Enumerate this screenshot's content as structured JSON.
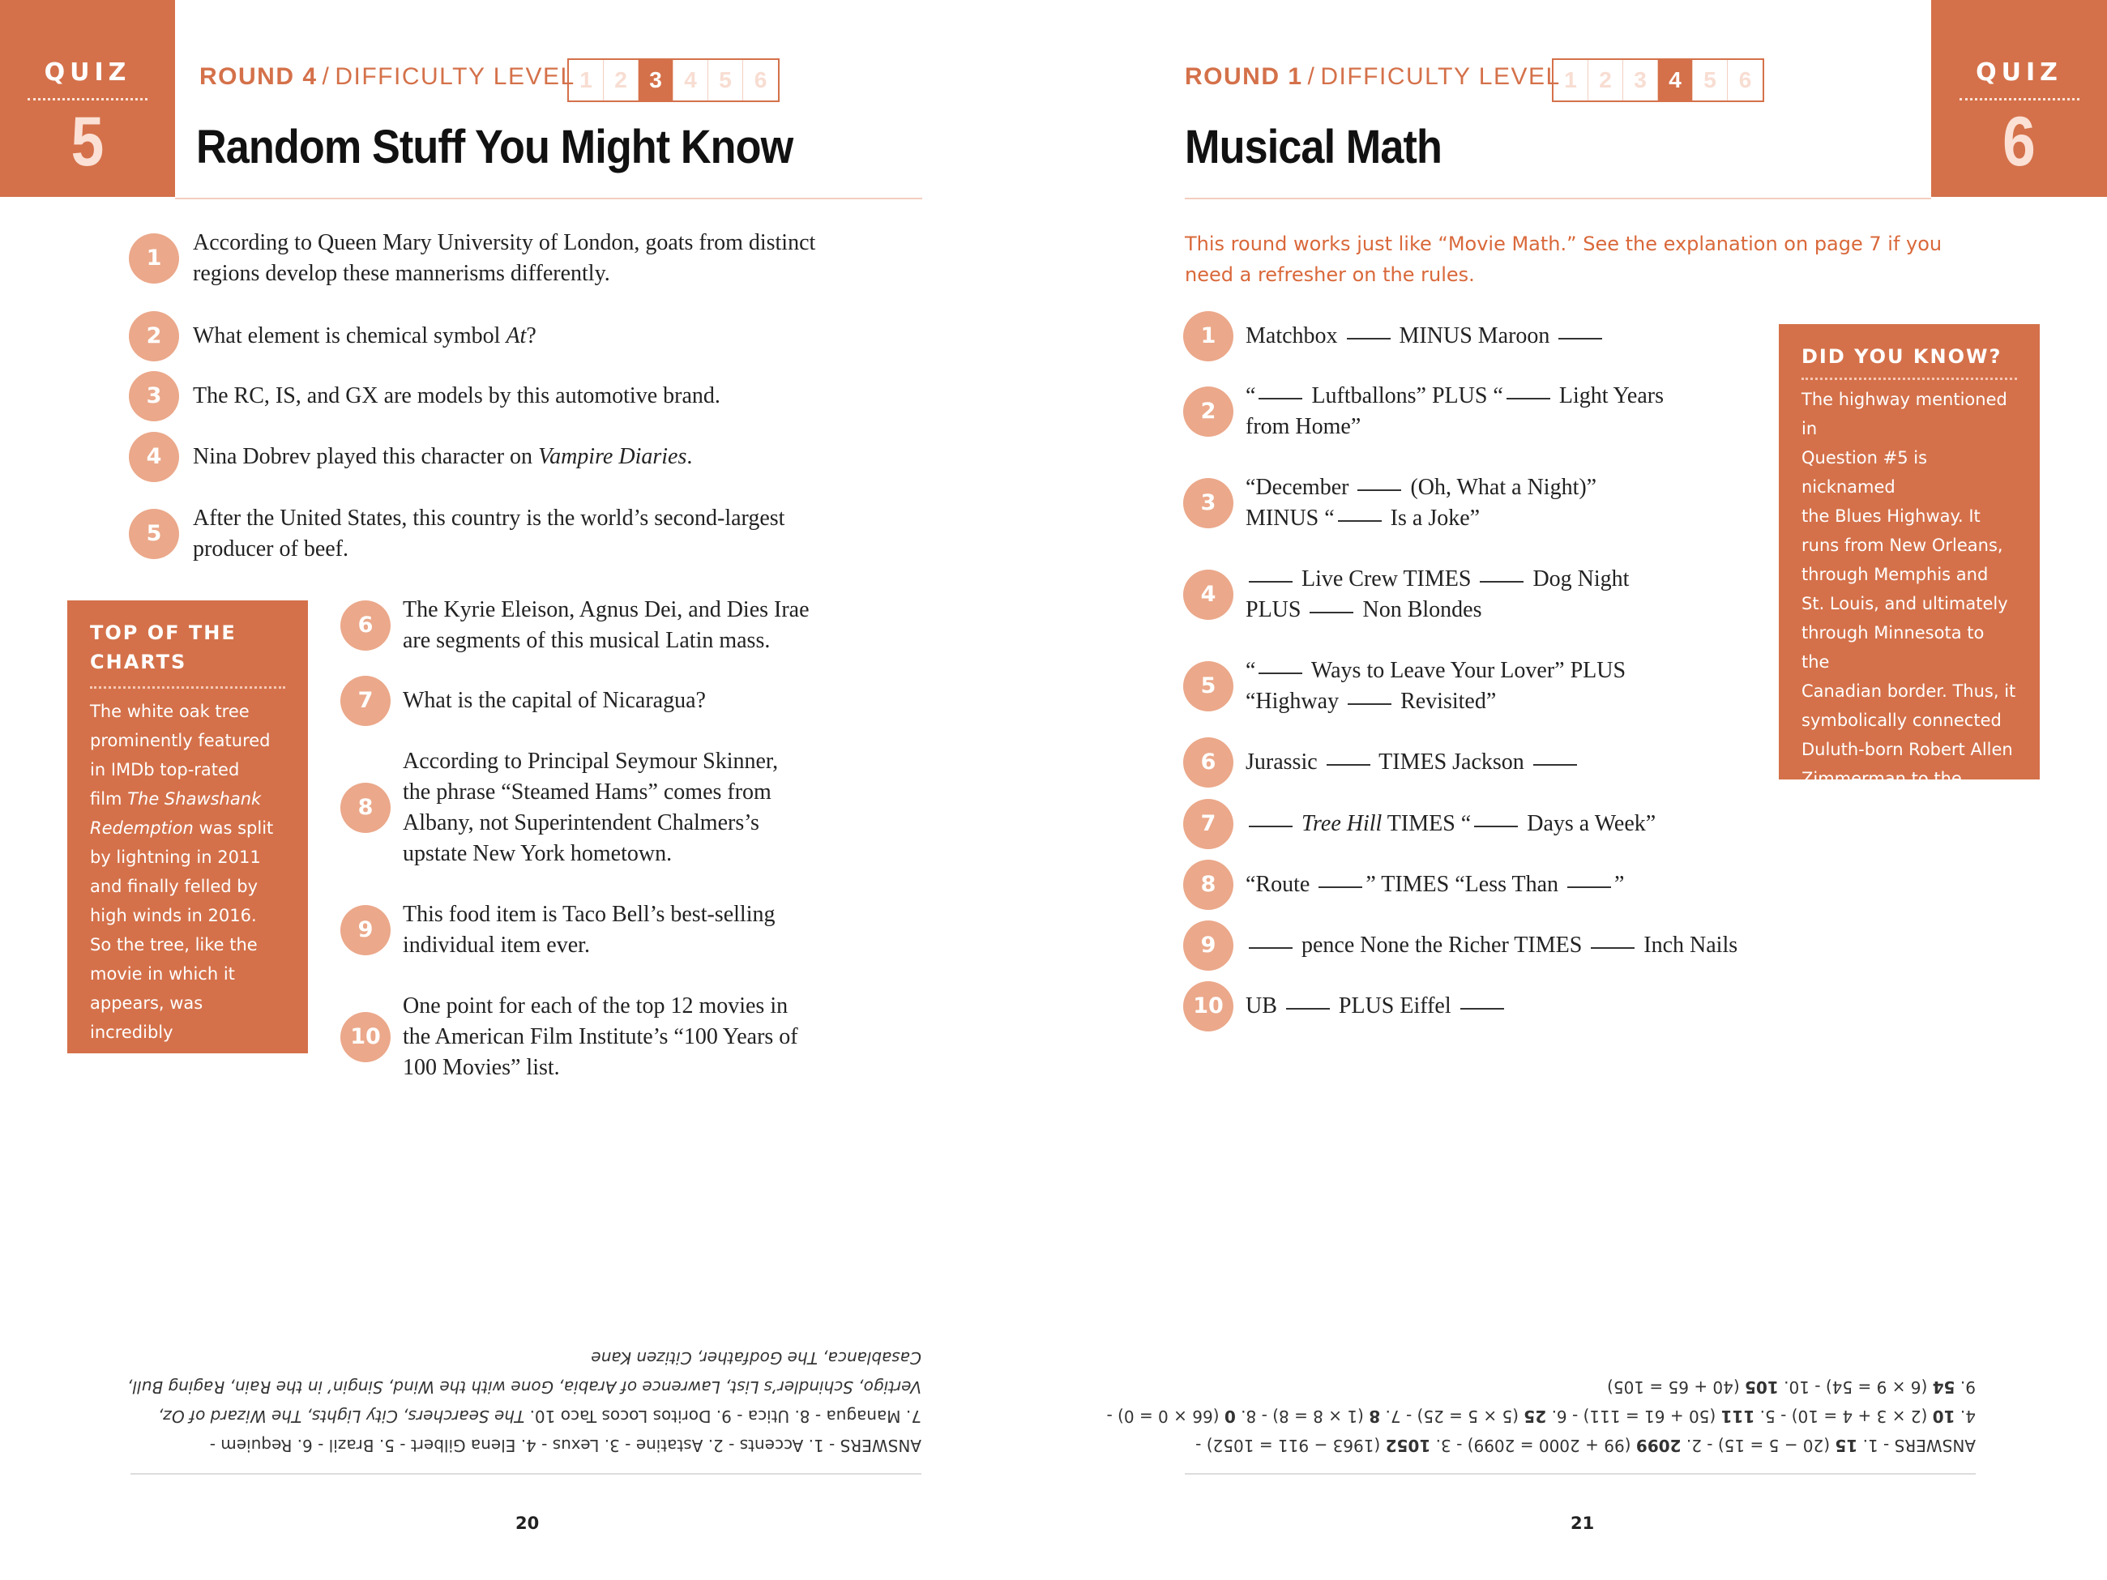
{
  "left_page": {
    "quiz_label": "QUIZ",
    "quiz_number": "5",
    "round_label": "ROUND 4",
    "separator": "/",
    "difficulty_label": "DIFFICULTY LEVEL",
    "levels": [
      "1",
      "2",
      "3",
      "4",
      "5",
      "6"
    ],
    "active_level": 3,
    "title": "Random Stuff You Might Know",
    "questions": [
      {
        "n": "1",
        "text": "According to Queen Mary University of London, goats from distinct\nregions develop these mannerisms differently."
      },
      {
        "n": "2",
        "text": "What element is chemical symbol *At*?"
      },
      {
        "n": "3",
        "text": "The RC, IS, and GX are models by this automotive brand."
      },
      {
        "n": "4",
        "text": "Nina Dobrev played this character on *Vampire Diaries*."
      },
      {
        "n": "5",
        "text": "After the United States, this country is the world’s second-largest\nproducer of beef."
      },
      {
        "n": "6",
        "text": "The Kyrie Eleison, Agnus Dei, and Dies Irae\nare segments of this musical Latin mass."
      },
      {
        "n": "7",
        "text": "What is the capital of Nicaragua?"
      },
      {
        "n": "8",
        "text": "According to Principal Seymour Skinner,\nthe phrase “Steamed Hams” comes from\nAlbany, not Superintendent Chalmers’s\nupstate New York hometown."
      },
      {
        "n": "9",
        "text": "This food item is Taco Bell’s best-selling\nindividual item ever."
      },
      {
        "n": "10",
        "text": "One point for each of the top 12 movies in\nthe American Film Institute’s “100 Years of\n100 Movies” list."
      }
    ],
    "sidebar": {
      "heading": "TOP OF THE\nCHARTS",
      "body": "The white oak tree\nprominently featured\nin IMDb top-rated\nfilm *The Shawshank*\n*Redemption* was split\nby lightning in 2011\nand finally felled by\nhigh winds in 2016.\nSo the tree, like the\nmovie in which it\nappears, was incredibly\noverrated."
    },
    "answers": "ANSWERS - 1. Accents - 2. Astatine - 3. Lexus - 4. Elena Gilbert - 5. Brazil - 6. Requiem -\n7. Managua - 8. Utica - 9. Doritos Locos Taco 10. *The Searchers, City Lights, The Wizard of Oz,*\n*Vertigo, Schindler’s List, Lawrence of Arabia, Gone with the Wind, Singin’ in the Rain, Raging Bull,*\n*Casablanca, The Godfather, Citizen Kane*",
    "page_number": "20"
  },
  "right_page": {
    "quiz_label": "QUIZ",
    "quiz_number": "6",
    "round_label": "ROUND 1",
    "separator": "/",
    "difficulty_label": "DIFFICULTY LEVEL",
    "levels": [
      "1",
      "2",
      "3",
      "4",
      "5",
      "6"
    ],
    "active_level": 4,
    "title": "Musical Math",
    "intro": "This round works just like “Movie Math.” See the explanation on page 7 if you\nneed a refresher on the rules.",
    "questions": [
      {
        "n": "1",
        "text": "Matchbox ___ MINUS Maroon ___"
      },
      {
        "n": "2",
        "text": "“___ Luftballons” PLUS “___ Light Years\nfrom Home”"
      },
      {
        "n": "3",
        "text": "“December ___ (Oh, What a Night)”\nMINUS “___ Is a Joke”"
      },
      {
        "n": "4",
        "text": "___ Live Crew TIMES ___ Dog Night\nPLUS ___ Non Blondes"
      },
      {
        "n": "5",
        "text": "“___ Ways to Leave Your Lover” PLUS\n“Highway ___ Revisited”"
      },
      {
        "n": "6",
        "text": "Jurassic ___ TIMES Jackson ___"
      },
      {
        "n": "7",
        "text": "___ *Tree Hill* TIMES “___ Days a Week”"
      },
      {
        "n": "8",
        "text": "“Route ___” TIMES “Less Than ___”"
      },
      {
        "n": "9",
        "text": "___ pence None the Richer TIMES ___ Inch Nails"
      },
      {
        "n": "10",
        "text": "UB ___ PLUS Eiffel ___"
      }
    ],
    "sidebar": {
      "heading": "DID YOU KNOW?",
      "body": "The highway mentioned in\nQuestion #5 is nicknamed\nthe Blues Highway. It\nruns from New Orleans,\nthrough Memphis and\nSt. Louis, and ultimately\nthrough Minnesota to the\nCanadian border. Thus, it\nsymbolically connected\nDuluth-born Robert Allen\nZimmerman to the music\nhe created as Bob Dylan.\nOr something like that."
    },
    "answers": "ANSWERS - 1. **15** (20 − 5 = 15) - 2. **2099** (99 + 2000 = 2099) - 3. **1052** (1963 − 911 = 1052) -\n4. **10** (2 × 3 + 4 = 10) - 5. **111** (50 + 61 = 111) - 6. **25** (5 × 5 = 25) - 7. **8** (1 × 8 = 8) - 8. **0** (66 × 0 = 0) -\n9. **54** (6 × 9 = 54) - 10. **105** (40 + 65 = 105)",
    "page_number": "21"
  },
  "colors": {
    "accent": "#D4714A",
    "circle": "#EBA88A",
    "intro": "#D9683A"
  }
}
